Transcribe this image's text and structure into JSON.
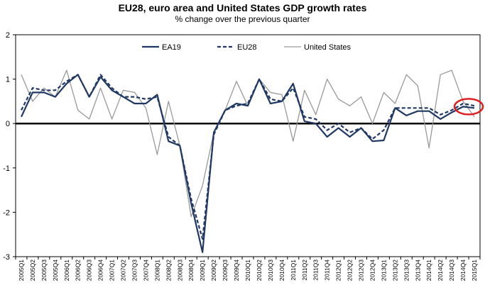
{
  "chart_data": {
    "type": "line",
    "title": "EU28, euro area and United States GDP growth rates",
    "subtitle": "% change over the previous quarter",
    "xlabel": "",
    "ylabel": "",
    "ylim": [
      -3,
      2
    ],
    "yticks": [
      "2",
      "1",
      "0",
      "-1",
      "-2",
      "-3"
    ],
    "grid": false,
    "legend_position": "top",
    "categories": [
      "2005Q1",
      "2005Q2",
      "2005Q3",
      "2005Q4",
      "2006Q1",
      "2006Q2",
      "2006Q3",
      "2006Q4",
      "2007Q1",
      "2007Q2",
      "2007Q3",
      "2007Q4",
      "2008Q1",
      "2008Q2",
      "2008Q3",
      "2008Q4",
      "2009Q1",
      "2009Q2",
      "2009Q3",
      "2009Q4",
      "2010Q1",
      "2010Q2",
      "2010Q3",
      "2010Q4",
      "2011Q1",
      "2011Q2",
      "2011Q3",
      "2011Q4",
      "2012Q1",
      "2012Q2",
      "2012Q3",
      "2012Q4",
      "2013Q1",
      "2013Q2",
      "2013Q3",
      "2013Q4",
      "2014Q1",
      "2014Q2",
      "2014Q3",
      "2014Q4",
      "2015Q1"
    ],
    "series": [
      {
        "name": "EA19",
        "color": "#1f3864",
        "style": "solid",
        "values": [
          0.15,
          0.7,
          0.7,
          0.6,
          0.9,
          1.1,
          0.6,
          1.05,
          0.75,
          0.6,
          0.45,
          0.45,
          0.65,
          -0.4,
          -0.5,
          -1.8,
          -2.9,
          -0.2,
          0.3,
          0.45,
          0.4,
          1.0,
          0.45,
          0.5,
          0.9,
          0.05,
          0.0,
          -0.3,
          -0.1,
          -0.3,
          -0.1,
          -0.4,
          -0.38,
          0.35,
          0.18,
          0.28,
          0.28,
          0.1,
          0.25,
          0.38,
          0.35
        ]
      },
      {
        "name": "EU28",
        "color": "#1f3864",
        "style": "dashed",
        "values": [
          0.3,
          0.8,
          0.75,
          0.75,
          0.95,
          1.1,
          0.6,
          1.1,
          0.8,
          0.6,
          0.6,
          0.55,
          0.6,
          -0.3,
          -0.5,
          -1.7,
          -2.6,
          -0.25,
          0.3,
          0.4,
          0.45,
          1.0,
          0.55,
          0.5,
          0.8,
          0.15,
          0.1,
          -0.15,
          0.0,
          -0.2,
          -0.1,
          -0.35,
          -0.15,
          0.35,
          0.35,
          0.35,
          0.35,
          0.2,
          0.3,
          0.45,
          0.4
        ]
      },
      {
        "name": "United States",
        "color": "#999999",
        "style": "solid",
        "values": [
          1.1,
          0.5,
          0.8,
          0.6,
          1.2,
          0.3,
          0.1,
          0.8,
          0.1,
          0.75,
          0.7,
          0.35,
          -0.7,
          0.5,
          -0.5,
          -2.1,
          -1.4,
          -0.2,
          0.3,
          0.95,
          0.4,
          1.0,
          0.7,
          0.65,
          -0.4,
          0.75,
          0.2,
          1.0,
          0.55,
          0.4,
          0.6,
          0.0,
          0.7,
          0.45,
          1.1,
          0.85,
          -0.55,
          1.1,
          1.2,
          0.5,
          0.15
        ]
      }
    ],
    "annotation": {
      "type": "ellipse",
      "color": "#e02020",
      "target": "2014Q4-2015Q1"
    }
  }
}
